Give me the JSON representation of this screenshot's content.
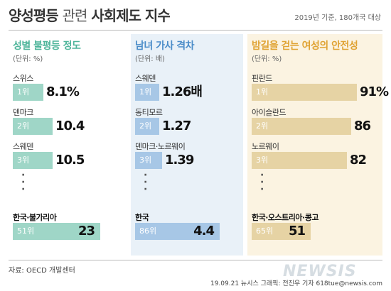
{
  "header": {
    "title_bold": "양성평등",
    "title_light": "관련",
    "title_bold2": "사회제도 지수",
    "note": "2019년 기준, 180개국 대상"
  },
  "chart_data": [
    {
      "type": "bar",
      "title": "성별 불평등 정도",
      "unit": "(단위: %)",
      "color": "#9fd6c7",
      "title_color": "#4fb59b",
      "categories": [
        "스위스",
        "덴마크",
        "스웨덴",
        "한국·불가리아"
      ],
      "ranks": [
        "1위",
        "2위",
        "3위",
        "51위"
      ],
      "values": [
        8.1,
        10.4,
        10.5,
        23
      ],
      "value_labels": [
        "8.1%",
        "10.4",
        "10.5",
        "23"
      ],
      "xlim": [
        0,
        28
      ]
    },
    {
      "type": "bar",
      "title": "남녀 가사 격차",
      "unit": "(단위: 배)",
      "color": "#a7c7e6",
      "title_color": "#4a8cc8",
      "categories": [
        "스웨덴",
        "동티모르",
        "덴마크·노르웨이",
        "한국"
      ],
      "ranks": [
        "1위",
        "2위",
        "3위",
        "86위"
      ],
      "values": [
        1.26,
        1.27,
        1.39,
        4.4
      ],
      "value_labels": [
        "1.26배",
        "1.27",
        "1.39",
        "4.4"
      ],
      "xlim": [
        0,
        5.4
      ]
    },
    {
      "type": "bar",
      "title": "밤길을 걷는 여성의 안전성",
      "unit": "(단위: %)",
      "color": "#e6d3a4",
      "title_color": "#e0a334",
      "categories": [
        "핀란드",
        "아이슬란드",
        "노르웨이",
        "한국·오스트리아·콩고"
      ],
      "ranks": [
        "1위",
        "2위",
        "3위",
        "65위"
      ],
      "values": [
        91,
        86,
        82,
        51
      ],
      "value_labels": [
        "91%",
        "86",
        "82",
        "51"
      ],
      "xlim": [
        0,
        108
      ]
    }
  ],
  "footer": {
    "source": "자료: OECD 개발센터",
    "logo": "NEWSIS",
    "credit": "19.09.21  뉴시스 그래픽: 전진우 기자 618tue@newsis.com"
  }
}
